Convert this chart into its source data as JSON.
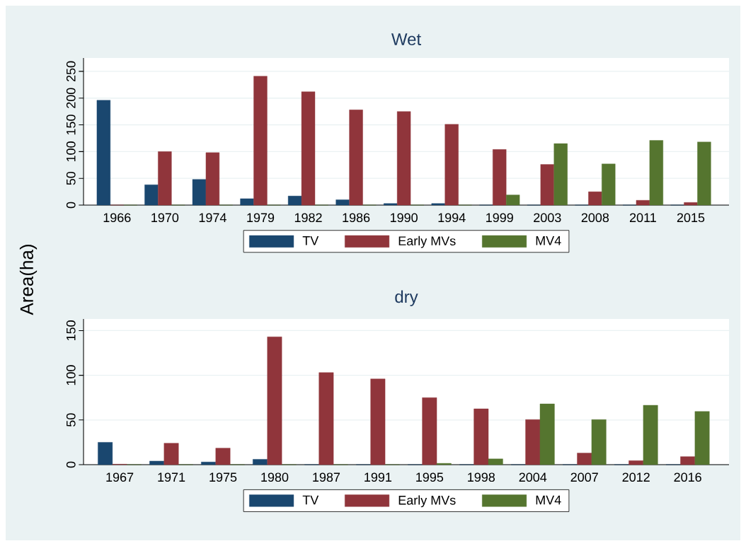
{
  "chart_data": [
    {
      "type": "bar",
      "title": "Wet",
      "ylabel": "Area(ha)",
      "categories": [
        "1966",
        "1970",
        "1974",
        "1979",
        "1982",
        "1986",
        "1990",
        "1994",
        "1999",
        "2003",
        "2008",
        "2011",
        "2015"
      ],
      "series": [
        {
          "name": "TV",
          "color": "#1a476f",
          "values": [
            196,
            38,
            48,
            12,
            17,
            10,
            3,
            3,
            0,
            0,
            0,
            0,
            0
          ]
        },
        {
          "name": "Early MVs",
          "color": "#90353b",
          "values": [
            0,
            100,
            98,
            241,
            212,
            178,
            175,
            151,
            104,
            76,
            25,
            9,
            5
          ]
        },
        {
          "name": "MV4",
          "color": "#55752f",
          "values": [
            0,
            0,
            0,
            0,
            0,
            0,
            0,
            0,
            19,
            115,
            77,
            121,
            118
          ]
        }
      ],
      "ylim": [
        0,
        275
      ],
      "yticks": [
        0,
        50,
        100,
        150,
        200,
        250
      ],
      "grid": "y",
      "legend": "bottom"
    },
    {
      "type": "bar",
      "title": "dry",
      "categories": [
        "1967",
        "1971",
        "1975",
        "1980",
        "1987",
        "1991",
        "1995",
        "1998",
        "2004",
        "2007",
        "2012",
        "2016"
      ],
      "series": [
        {
          "name": "TV",
          "color": "#1a476f",
          "values": [
            25,
            4,
            3,
            6,
            0,
            0,
            0,
            0,
            0,
            0,
            0,
            0
          ]
        },
        {
          "name": "Early MVs",
          "color": "#90353b",
          "values": [
            0.5,
            24,
            18.5,
            143,
            103,
            96,
            75,
            62.5,
            50.5,
            13,
            4.5,
            9
          ]
        },
        {
          "name": "MV4",
          "color": "#55752f",
          "values": [
            0,
            0,
            0,
            0,
            0,
            0,
            1.5,
            6.5,
            68,
            50.5,
            66.5,
            59.5
          ]
        }
      ],
      "ylim": [
        0,
        163
      ],
      "yticks": [
        0,
        50,
        100,
        150
      ],
      "grid": "y",
      "legend": "bottom"
    }
  ]
}
